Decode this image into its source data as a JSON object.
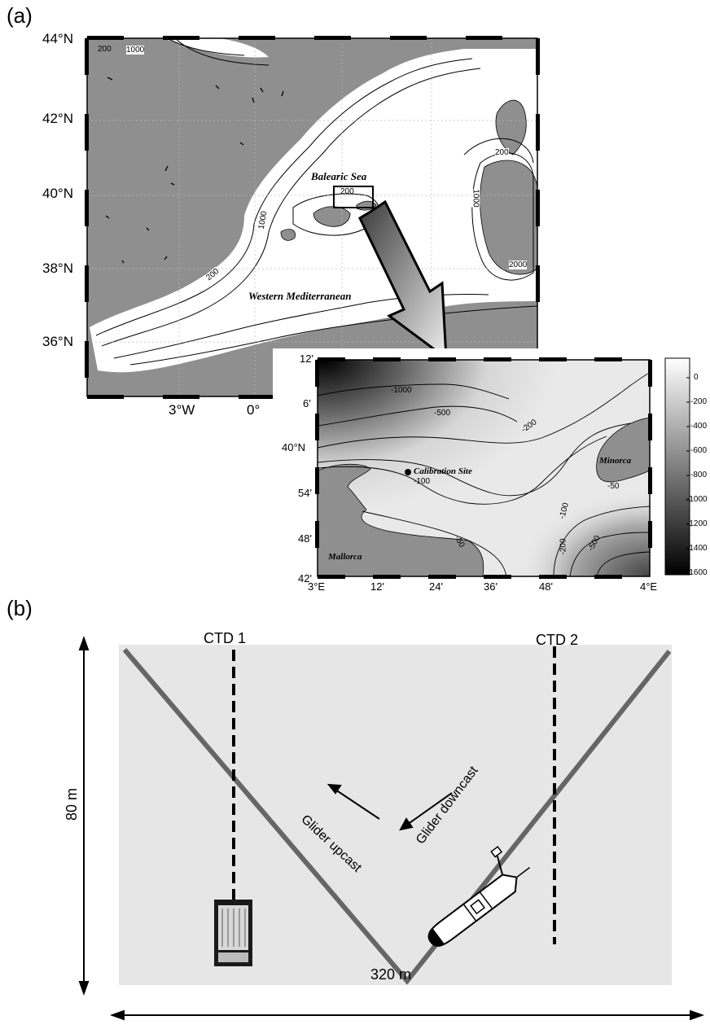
{
  "panel_a": {
    "label": "(a)",
    "lat_labels": [
      "44°N",
      "42°N",
      "40°N",
      "38°N",
      "36°N"
    ],
    "lon_labels": [
      "3°W",
      "0°"
    ],
    "regions": {
      "balearic_sea": "Balearic Sea",
      "western_med": "Western Mediterranean"
    },
    "contours": [
      "200",
      "1000",
      "1000",
      "200",
      "200",
      "1000",
      "200",
      "2000",
      "200"
    ]
  },
  "inset": {
    "lat_labels": [
      "12'",
      "6'",
      "40°N",
      "54'",
      "48'",
      "42'"
    ],
    "lon_labels": [
      "3°E",
      "12'",
      "24'",
      "36'",
      "48'",
      "4°E"
    ],
    "islands": {
      "minorca": "Minorca",
      "mallorca": "Mallorca"
    },
    "site": "Calibration Site",
    "contours": [
      "-1000",
      "-500",
      "-200",
      "-100",
      "-50",
      "-50",
      "-100",
      "-200",
      "-500"
    ],
    "colorbar": [
      "0",
      "-200",
      "-400",
      "-600",
      "-800",
      "-1000",
      "-1200",
      "-1400",
      "-1600"
    ]
  },
  "panel_b": {
    "label": "(b)",
    "ctd1": "CTD 1",
    "ctd2": "CTD 2",
    "height": "80 m",
    "width": "320 m",
    "upcast": "Glider upcast",
    "downcast": "Glider downcast"
  }
}
